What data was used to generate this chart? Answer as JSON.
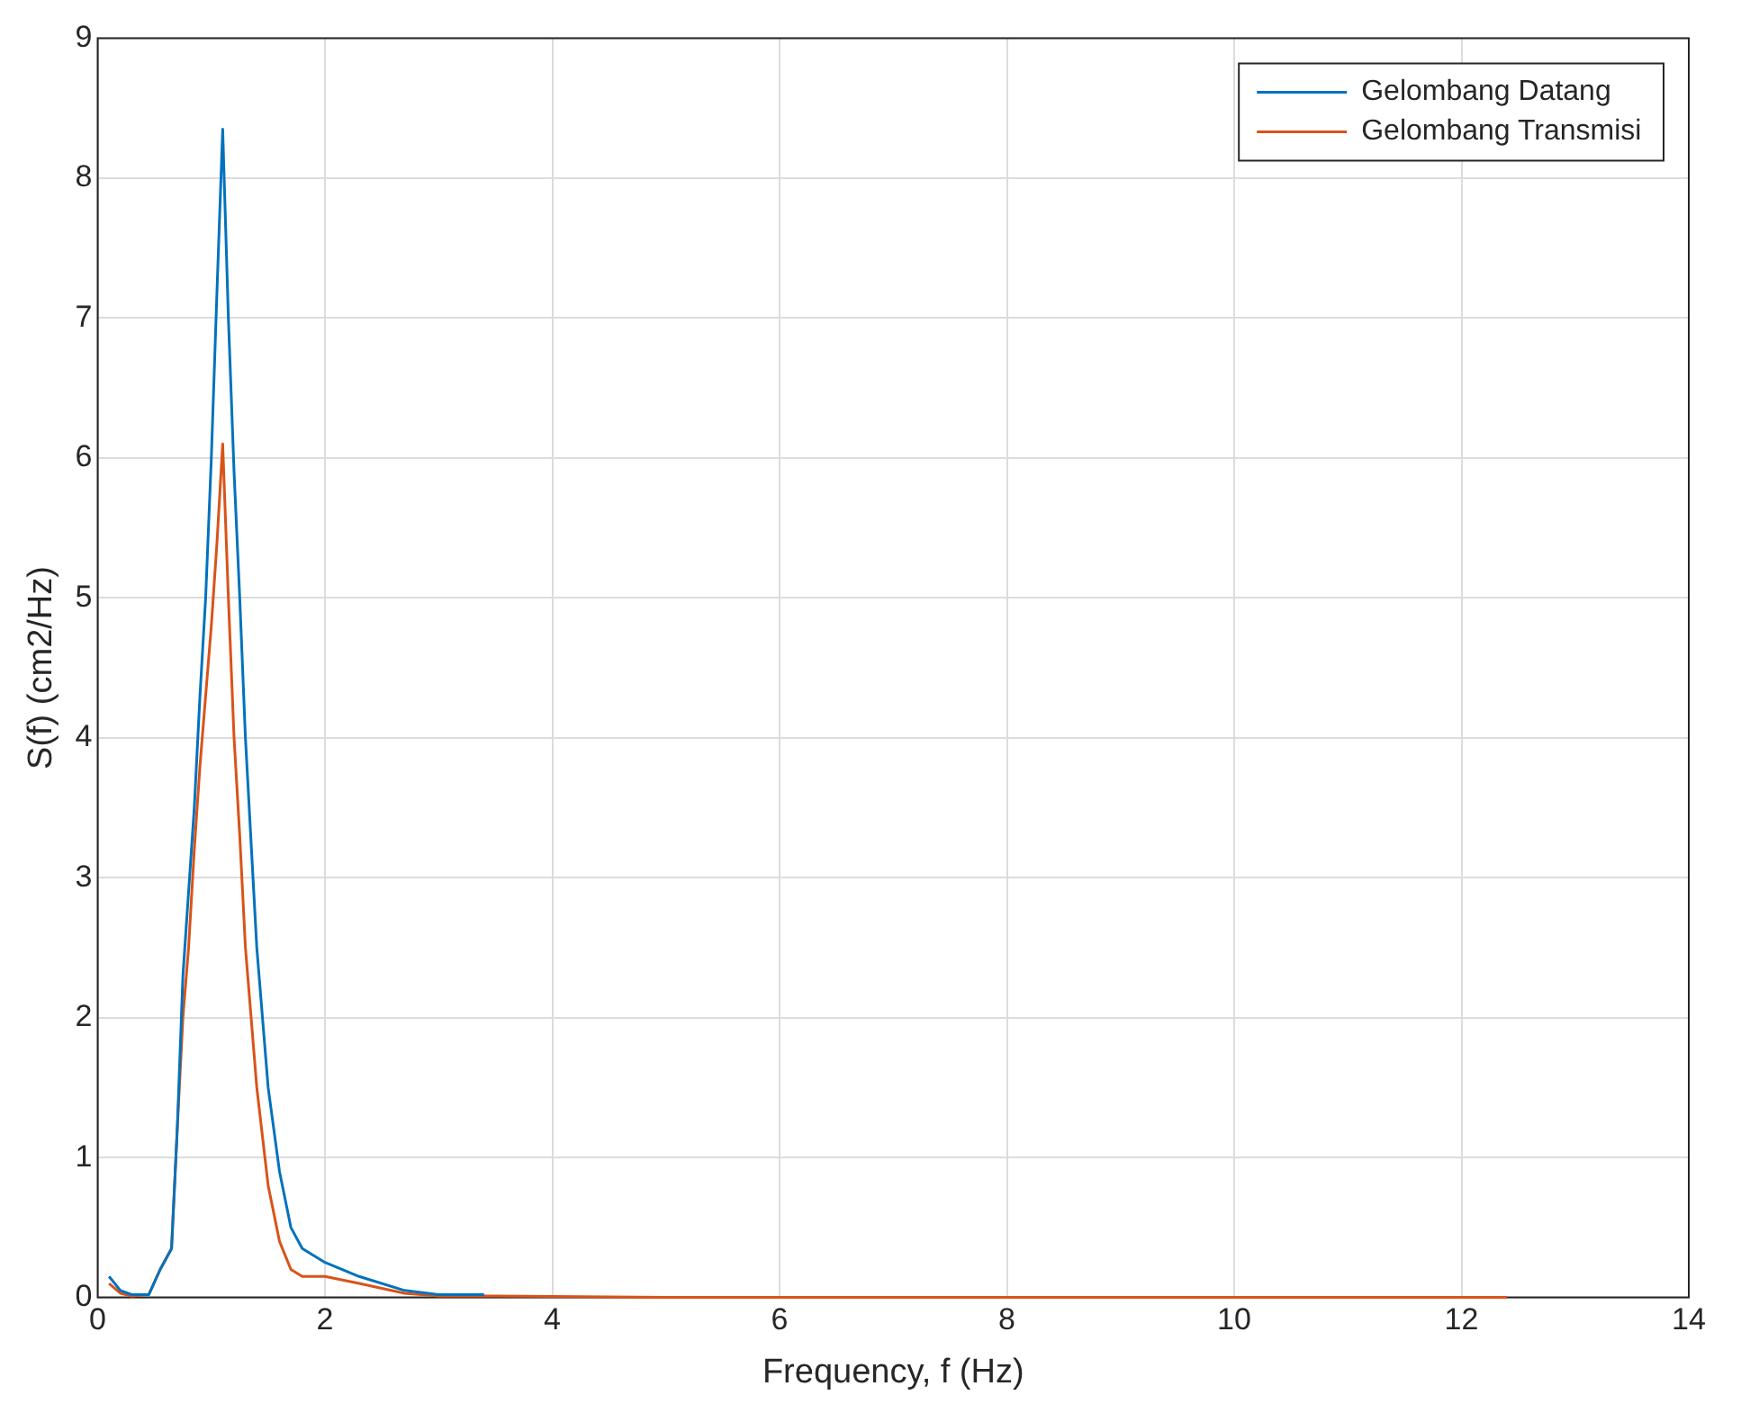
{
  "chart_data": {
    "type": "line",
    "xlabel": "Frequency, f (Hz)",
    "ylabel": "S(f) (cm2/Hz)",
    "xlim": [
      0,
      14
    ],
    "xticks": [
      0,
      2,
      4,
      6,
      8,
      10,
      12,
      14
    ],
    "ylim": [
      0,
      9
    ],
    "yticks": [
      0,
      1,
      2,
      3,
      4,
      5,
      6,
      7,
      8,
      9
    ],
    "grid": true,
    "legend": "top right",
    "marker": "none",
    "line_style": "solid",
    "series": [
      {
        "name": "Gelombang Datang",
        "color": "#0072bd",
        "x": [
          0.1,
          0.2,
          0.3,
          0.45,
          0.55,
          0.65,
          0.7,
          0.75,
          0.8,
          0.85,
          0.9,
          0.95,
          1.0,
          1.05,
          1.1,
          1.15,
          1.2,
          1.25,
          1.3,
          1.4,
          1.5,
          1.6,
          1.7,
          1.8,
          2.0,
          2.3,
          2.7,
          3.0,
          3.4
        ],
        "values": [
          0.15,
          0.05,
          0.02,
          0.02,
          0.2,
          0.35,
          1.2,
          2.3,
          2.9,
          3.5,
          4.3,
          5.0,
          6.0,
          7.2,
          8.35,
          7.0,
          5.9,
          5.0,
          4.0,
          2.5,
          1.5,
          0.9,
          0.5,
          0.35,
          0.25,
          0.15,
          0.05,
          0.02,
          0.02
        ]
      },
      {
        "name": "Gelombang Transmisi",
        "color": "#d95319",
        "x": [
          0.1,
          0.2,
          0.3,
          0.45,
          0.55,
          0.65,
          0.7,
          0.75,
          0.8,
          0.85,
          0.9,
          0.95,
          1.0,
          1.05,
          1.1,
          1.15,
          1.2,
          1.25,
          1.3,
          1.4,
          1.5,
          1.6,
          1.7,
          1.8,
          2.0,
          2.3,
          2.7,
          3.0,
          3.5,
          5,
          8,
          12.4
        ],
        "values": [
          0.1,
          0.03,
          0.01,
          0.02,
          0.2,
          0.35,
          1.2,
          2.0,
          2.5,
          3.2,
          3.8,
          4.3,
          4.8,
          5.4,
          6.1,
          5.0,
          4.0,
          3.3,
          2.5,
          1.5,
          0.8,
          0.4,
          0.2,
          0.15,
          0.15,
          0.1,
          0.03,
          0.01,
          0.01,
          0,
          0,
          0
        ]
      }
    ]
  }
}
